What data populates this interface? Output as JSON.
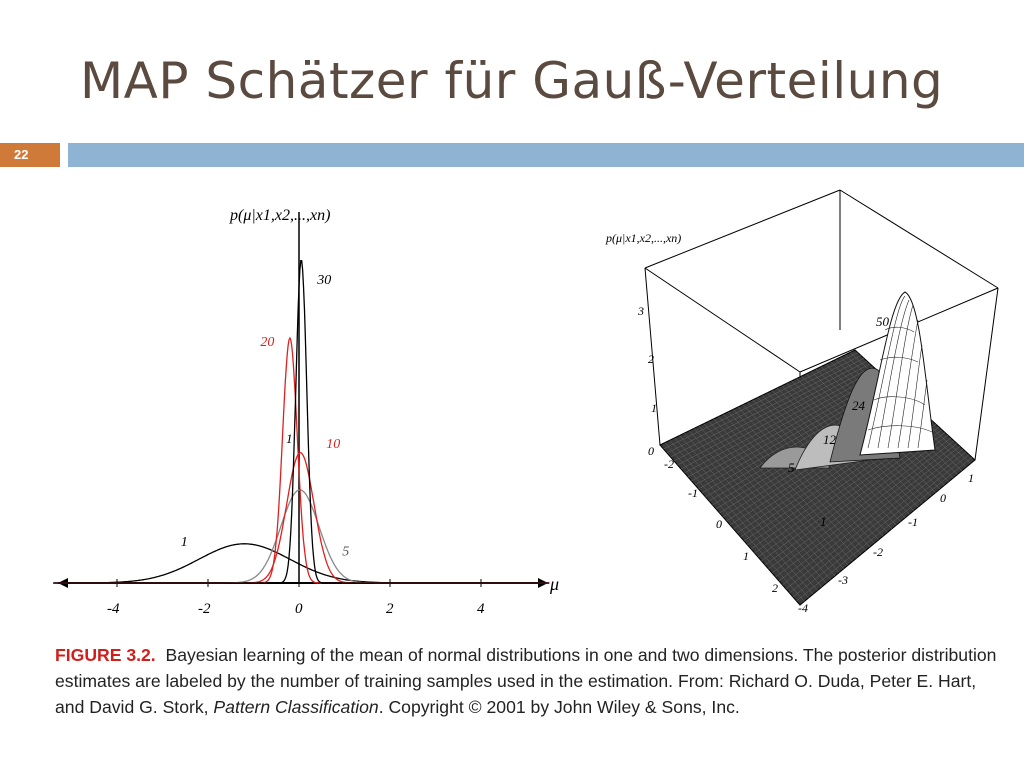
{
  "slide": {
    "title": "MAP Schätzer für Gauß-Verteilung",
    "number": "22"
  },
  "colors": {
    "title": "#5b4a3f",
    "accent_orange": "#d07a3a",
    "accent_blue": "#8fb3d3",
    "figure_label": "#d0201c",
    "curve_red": "#e02020",
    "curve_black": "#000000",
    "curve_gray": "#888888"
  },
  "chart_data": [
    {
      "type": "line",
      "title": "",
      "ylabel": "p(μ|x1,x2,...,xn)",
      "xlabel": "μ",
      "xlim": [
        -5.5,
        5.7
      ],
      "ylim": [
        0,
        3.5
      ],
      "x_ticks": [
        "-4",
        "-2",
        "0",
        "2",
        "4"
      ],
      "series": [
        {
          "name": "1",
          "mu": -1.2,
          "sigma": 1.0,
          "peak": 0.4,
          "color": "#000000"
        },
        {
          "name": "5",
          "mu": 0.02,
          "sigma": 0.42,
          "peak": 0.95,
          "color": "#888888"
        },
        {
          "name": "10",
          "mu": 0.03,
          "sigma": 0.3,
          "peak": 1.33,
          "color": "#e02020"
        },
        {
          "name": "20",
          "mu": -0.2,
          "sigma": 0.16,
          "peak": 2.5,
          "color": "#e02020"
        },
        {
          "name": "30",
          "mu": 0.05,
          "sigma": 0.12,
          "peak": 3.3,
          "color": "#000000"
        }
      ],
      "extra_label": "1"
    },
    {
      "type": "area",
      "title": "",
      "zlabel": "p(μ|x1,x2,...,xn)",
      "z_ticks": [
        "0",
        "1",
        "2",
        "3"
      ],
      "x_ticks": [
        "-2",
        "-1",
        "0",
        "1",
        "2"
      ],
      "y_ticks": [
        "1",
        "0",
        "-1",
        "-2",
        "-3",
        "-4"
      ],
      "peak_labels": [
        "50",
        "24",
        "12",
        "5",
        "1"
      ]
    }
  ],
  "caption": {
    "label": "FIGURE 3.2.",
    "text": "Bayesian learning of the mean of normal distributions in one and two dimensions. The posterior distribution estimates are labeled by the number of training samples used in the estimation. From: Richard O. Duda, Peter E. Hart, and David G. Stork, ",
    "book": "Pattern Classification",
    "tail": ". Copyright © 2001 by John Wiley & Sons, Inc."
  }
}
